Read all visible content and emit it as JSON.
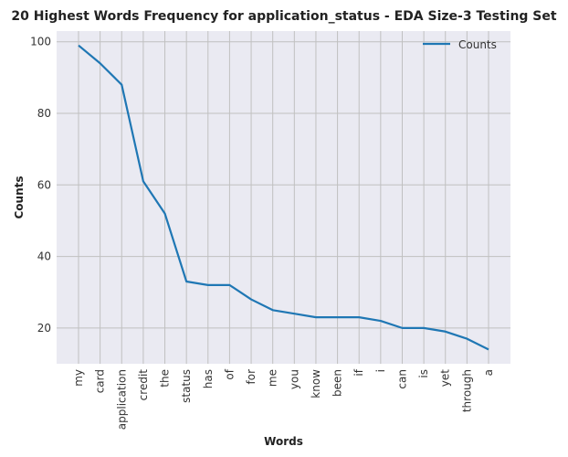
{
  "chart_data": {
    "type": "line",
    "title": "20 Highest Words Frequency for application_status - EDA Size-3 Testing Set",
    "xlabel": "Words",
    "ylabel": "Counts",
    "categories": [
      "my",
      "card",
      "application",
      "credit",
      "the",
      "status",
      "has",
      "of",
      "for",
      "me",
      "you",
      "know",
      "been",
      "if",
      "i",
      "can",
      "is",
      "yet",
      "through",
      "a"
    ],
    "series": [
      {
        "name": "Counts",
        "values": [
          99,
          94,
          88,
          61,
          52,
          33,
          32,
          32,
          28,
          25,
          24,
          23,
          23,
          23,
          22,
          20,
          20,
          19,
          17,
          14
        ]
      }
    ],
    "ylim": [
      10,
      103
    ],
    "yticks": [
      20,
      40,
      60,
      80,
      100
    ],
    "grid": true,
    "legend_position": "top-right",
    "colors": {
      "line": "#1f77b4",
      "plot_bg": "#eaeaf2",
      "grid": "#c0c0c0"
    }
  }
}
